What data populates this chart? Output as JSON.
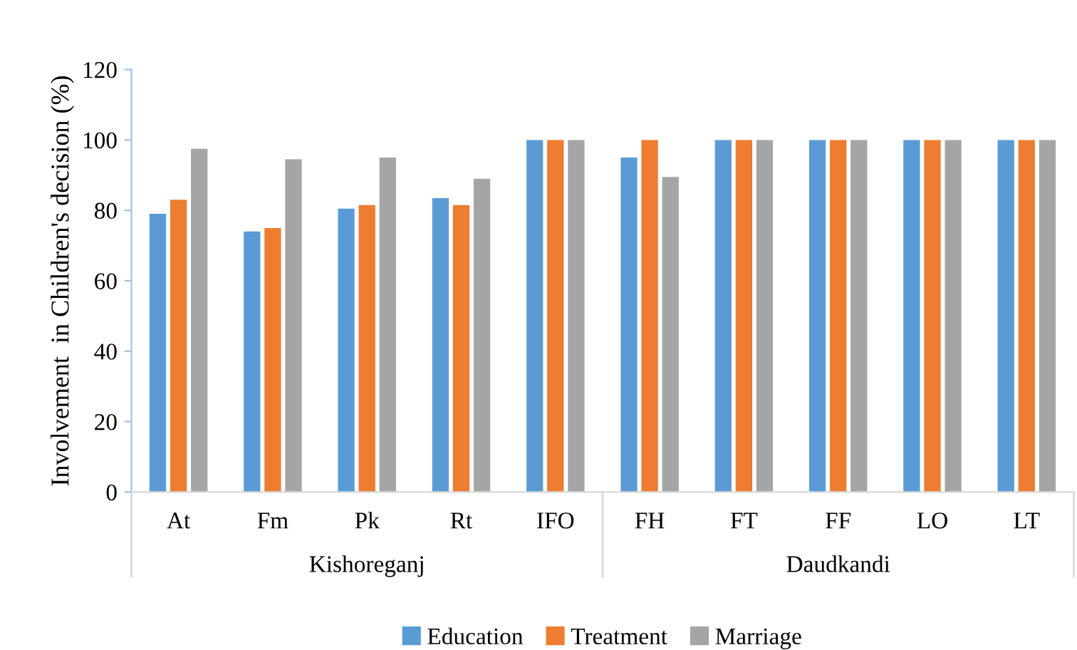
{
  "chart_data": {
    "type": "bar",
    "ylabel": "Involvement  in Children's decision (%)",
    "categories": [
      "At",
      "Fm",
      "Pk",
      "Rt",
      "IFO",
      "FH",
      "FT",
      "FF",
      "LO",
      "LT"
    ],
    "series": [
      {
        "name": "Education",
        "color": "#5b9bd5",
        "values": [
          79,
          74,
          80.5,
          83.5,
          100,
          95,
          100,
          100,
          100,
          100
        ]
      },
      {
        "name": "Treatment",
        "color": "#ed7d31",
        "values": [
          83,
          75,
          81.5,
          81.5,
          100,
          100,
          100,
          100,
          100,
          100
        ]
      },
      {
        "name": "Marriage",
        "color": "#a5a5a5",
        "values": [
          97.5,
          94.5,
          95,
          89,
          100,
          89.5,
          100,
          100,
          100,
          100
        ]
      }
    ],
    "annotations": [
      "Kishoreganj",
      "Daudkandi"
    ],
    "ylim": [
      0,
      120
    ],
    "yticks": [
      0,
      20,
      40,
      60,
      80,
      100,
      120
    ],
    "legend": "bottom"
  }
}
